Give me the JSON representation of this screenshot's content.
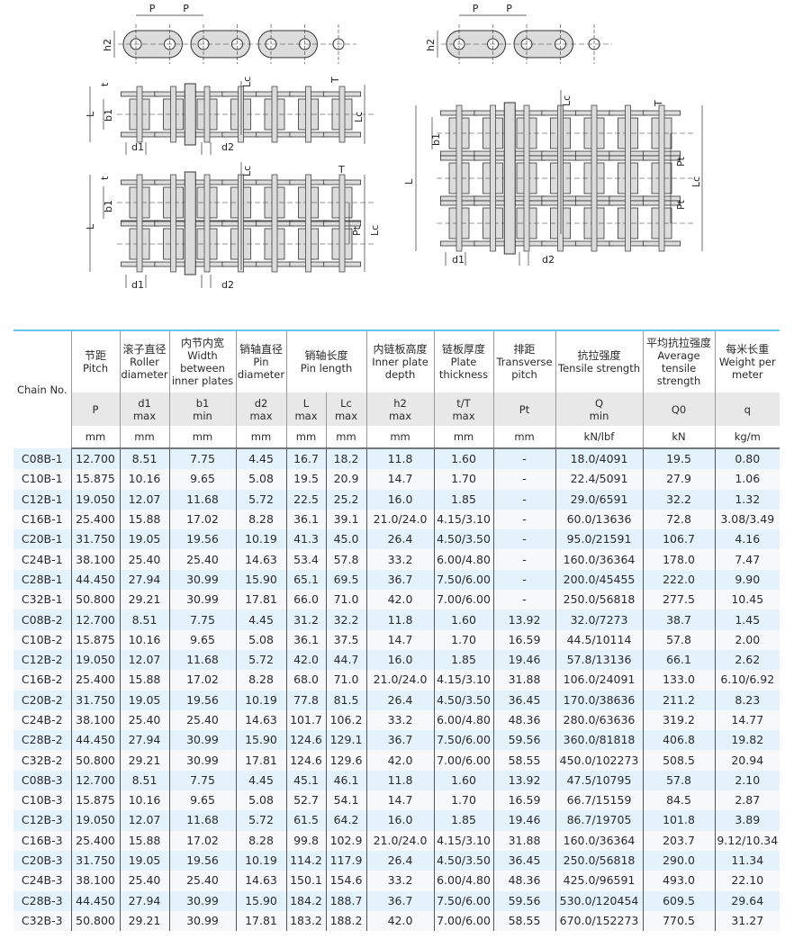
{
  "diagram_labels": {
    "side_view": [
      "P",
      "P",
      "h2"
    ],
    "single_strand": [
      "t",
      "L",
      "b1",
      "d1",
      "d2",
      "Lc",
      "Lc",
      "T"
    ],
    "double_strand": [
      "t",
      "L",
      "b1",
      "d1",
      "d2",
      "Lc",
      "T",
      "Pt",
      "Lc"
    ],
    "triple_strand": [
      "L",
      "b1",
      "d1",
      "d2",
      "Lc",
      "T",
      "Pt",
      "Pt",
      "Lc"
    ]
  },
  "table": {
    "header": {
      "chain_no": "Chain No.",
      "columns": [
        {
          "zh": "节距",
          "en": "Pitch",
          "sym": "P",
          "sub": "",
          "unit": "mm"
        },
        {
          "zh": "滚子直径",
          "en": "Roller diameter",
          "sym": "d1",
          "sub": "max",
          "unit": "mm"
        },
        {
          "zh": "内节内宽",
          "en": "Width between inner plates",
          "sym": "b1",
          "sub": "min",
          "unit": "mm"
        },
        {
          "zh": "销轴直径",
          "en": "Pin diameter",
          "sym": "d2",
          "sub": "max",
          "unit": "mm"
        },
        {
          "zh": "销轴长度",
          "en": "Pin length",
          "sym": "L",
          "sub": "max",
          "unit": "mm",
          "sym2": "Lc",
          "sub2": "max",
          "unit2": "mm"
        },
        {
          "zh": "内链板高度",
          "en": "Inner plate depth",
          "sym": "h2",
          "sub": "max",
          "unit": "mm"
        },
        {
          "zh": "链板厚度",
          "en": "Plate thickness",
          "sym": "t/T",
          "sub": "max",
          "unit": "mm"
        },
        {
          "zh": "排距",
          "en": "Transverse pitch",
          "sym": "Pt",
          "sub": "",
          "unit": "mm"
        },
        {
          "zh": "抗拉强度",
          "en": "Tensile strength",
          "sym": "Q",
          "sub": "min",
          "unit": "kN/lbf"
        },
        {
          "zh": "平均抗拉强度",
          "en": "Average tensile strength",
          "sym": "Q0",
          "sub": "",
          "unit": "kN"
        },
        {
          "zh": "每米长重",
          "en": "Weight per meter",
          "sym": "q",
          "sub": "",
          "unit": "kg/m"
        }
      ]
    },
    "rows": [
      [
        "C08B-1",
        "12.700",
        "8.51",
        "7.75",
        "4.45",
        "16.7",
        "18.2",
        "11.8",
        "1.60",
        "-",
        "18.0/4091",
        "19.5",
        "0.80"
      ],
      [
        "C10B-1",
        "15.875",
        "10.16",
        "9.65",
        "5.08",
        "19.5",
        "20.9",
        "14.7",
        "1.70",
        "-",
        "22.4/5091",
        "27.9",
        "1.06"
      ],
      [
        "C12B-1",
        "19.050",
        "12.07",
        "11.68",
        "5.72",
        "22.5",
        "25.2",
        "16.0",
        "1.85",
        "-",
        "29.0/6591",
        "32.2",
        "1.32"
      ],
      [
        "C16B-1",
        "25.400",
        "15.88",
        "17.02",
        "8.28",
        "36.1",
        "39.1",
        "21.0/24.0",
        "4.15/3.10",
        "-",
        "60.0/13636",
        "72.8",
        "3.08/3.49"
      ],
      [
        "C20B-1",
        "31.750",
        "19.05",
        "19.56",
        "10.19",
        "41.3",
        "45.0",
        "26.4",
        "4.50/3.50",
        "-",
        "95.0/21591",
        "106.7",
        "4.16"
      ],
      [
        "C24B-1",
        "38.100",
        "25.40",
        "25.40",
        "14.63",
        "53.4",
        "57.8",
        "33.2",
        "6.00/4.80",
        "-",
        "160.0/36364",
        "178.0",
        "7.47"
      ],
      [
        "C28B-1",
        "44.450",
        "27.94",
        "30.99",
        "15.90",
        "65.1",
        "69.5",
        "36.7",
        "7.50/6.00",
        "-",
        "200.0/45455",
        "222.0",
        "9.90"
      ],
      [
        "C32B-1",
        "50.800",
        "29.21",
        "30.99",
        "17.81",
        "66.0",
        "71.0",
        "42.0",
        "7.00/6.00",
        "-",
        "250.0/56818",
        "277.5",
        "10.45"
      ],
      [
        "C08B-2",
        "12.700",
        "8.51",
        "7.75",
        "4.45",
        "31.2",
        "32.2",
        "11.8",
        "1.60",
        "13.92",
        "32.0/7273",
        "38.7",
        "1.45"
      ],
      [
        "C10B-2",
        "15.875",
        "10.16",
        "9.65",
        "5.08",
        "36.1",
        "37.5",
        "14.7",
        "1.70",
        "16.59",
        "44.5/10114",
        "57.8",
        "2.00"
      ],
      [
        "C12B-2",
        "19.050",
        "12.07",
        "11.68",
        "5.72",
        "42.0",
        "44.7",
        "16.0",
        "1.85",
        "19.46",
        "57.8/13136",
        "66.1",
        "2.62"
      ],
      [
        "C16B-2",
        "25.400",
        "15.88",
        "17.02",
        "8.28",
        "68.0",
        "71.0",
        "21.0/24.0",
        "4.15/3.10",
        "31.88",
        "106.0/24091",
        "133.0",
        "6.10/6.92"
      ],
      [
        "C20B-2",
        "31.750",
        "19.05",
        "19.56",
        "10.19",
        "77.8",
        "81.5",
        "26.4",
        "4.50/3.50",
        "36.45",
        "170.0/38636",
        "211.2",
        "8.23"
      ],
      [
        "C24B-2",
        "38.100",
        "25.40",
        "25.40",
        "14.63",
        "101.7",
        "106.2",
        "33.2",
        "6.00/4.80",
        "48.36",
        "280.0/63636",
        "319.2",
        "14.77"
      ],
      [
        "C28B-2",
        "44.450",
        "27.94",
        "30.99",
        "15.90",
        "124.6",
        "129.1",
        "36.7",
        "7.50/6.00",
        "59.56",
        "360.0/81818",
        "406.8",
        "19.82"
      ],
      [
        "C32B-2",
        "50.800",
        "29.21",
        "30.99",
        "17.81",
        "124.6",
        "129.6",
        "42.0",
        "7.00/6.00",
        "58.55",
        "450.0/102273",
        "508.5",
        "20.94"
      ],
      [
        "C08B-3",
        "12.700",
        "8.51",
        "7.75",
        "4.45",
        "45.1",
        "46.1",
        "11.8",
        "1.60",
        "13.92",
        "47.5/10795",
        "57.8",
        "2.10"
      ],
      [
        "C10B-3",
        "15.875",
        "10.16",
        "9.65",
        "5.08",
        "52.7",
        "54.1",
        "14.7",
        "1.70",
        "16.59",
        "66.7/15159",
        "84.5",
        "2.87"
      ],
      [
        "C12B-3",
        "19.050",
        "12.07",
        "11.68",
        "5.72",
        "61.5",
        "64.2",
        "16.0",
        "1.85",
        "19.46",
        "86.7/19705",
        "101.8",
        "3.89"
      ],
      [
        "C16B-3",
        "25.400",
        "15.88",
        "17.02",
        "8.28",
        "99.8",
        "102.9",
        "21.0/24.0",
        "4.15/3.10",
        "31.88",
        "160.0/36364",
        "203.7",
        "9.12/10.34"
      ],
      [
        "C20B-3",
        "31.750",
        "19.05",
        "19.56",
        "10.19",
        "114.2",
        "117.9",
        "26.4",
        "4.50/3.50",
        "36.45",
        "250.0/56818",
        "290.0",
        "11.34"
      ],
      [
        "C24B-3",
        "38.100",
        "25.40",
        "25.40",
        "14.63",
        "150.1",
        "154.6",
        "33.2",
        "6.00/4.80",
        "48.36",
        "425.0/96591",
        "493.0",
        "22.10"
      ],
      [
        "C28B-3",
        "44.450",
        "27.94",
        "30.99",
        "15.90",
        "184.2",
        "188.7",
        "36.7",
        "7.50/6.00",
        "59.56",
        "530.0/120454",
        "609.5",
        "29.64"
      ],
      [
        "C32B-3",
        "50.800",
        "29.21",
        "30.99",
        "17.81",
        "183.2",
        "188.2",
        "42.0",
        "7.00/6.00",
        "58.55",
        "670.0/152273",
        "770.5",
        "31.27"
      ]
    ]
  },
  "colors": {
    "header_rule": "#6cc3ea",
    "row_alt": "#e4f2fb",
    "symbol_row": "#e8e8e8"
  }
}
